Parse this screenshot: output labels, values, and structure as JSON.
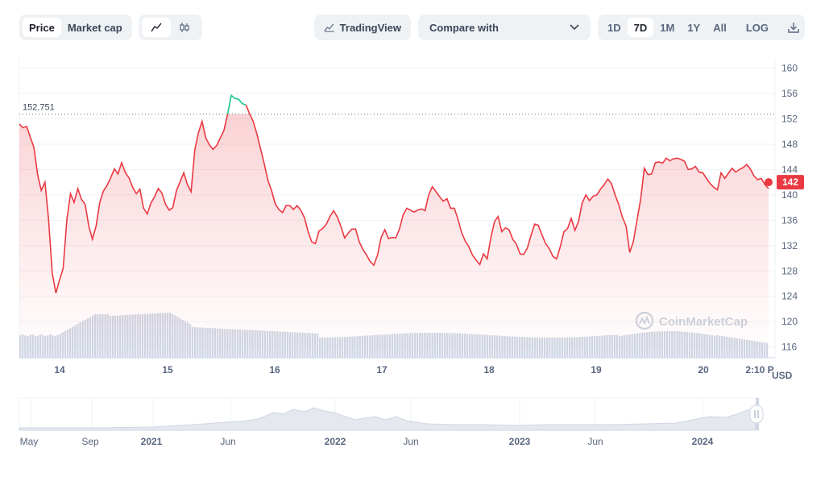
{
  "toolbar": {
    "price_tab": "Price",
    "market_cap_tab": "Market cap",
    "line_icon": "line-chart-icon",
    "candle_icon": "candlestick-icon",
    "tradingview_label": "TradingView",
    "compare_label": "Compare with",
    "ranges": [
      "1D",
      "7D",
      "1M",
      "1Y",
      "All"
    ],
    "active_range": "7D",
    "log_label": "LOG",
    "download_icon": "download-icon"
  },
  "chart_data": {
    "type": "line",
    "y_axis": {
      "ticks": [
        116,
        120,
        124,
        128,
        132,
        136,
        140,
        144,
        148,
        152,
        156,
        160
      ],
      "ylim": [
        114.3,
        161.6
      ],
      "position": "right"
    },
    "x_axis": {
      "tick_labels": [
        "14",
        "15",
        "16",
        "17",
        "18",
        "19",
        "20",
        "2:10 P"
      ]
    },
    "currency_label": "USD",
    "reference_line": {
      "value": 152.751,
      "label": "152.751"
    },
    "current_price": {
      "value": 142,
      "label": "142"
    },
    "colors": {
      "down": "#ea3943",
      "up": "#16c784",
      "reference": "#58667e",
      "volume": "#cfd6e4"
    },
    "series": [
      {
        "values": [
          151.2,
          150.6,
          150.8,
          149.1,
          147.5,
          143.2,
          140.7,
          142.0,
          136.1,
          127.7,
          124.5,
          126.6,
          128.4,
          136.1,
          140.2,
          138.8,
          141.0,
          139.3,
          138.5,
          135.1,
          133.0,
          135.1,
          138.8,
          140.6,
          141.5,
          142.7,
          144.1,
          143.3,
          145.1,
          143.5,
          142.7,
          141.2,
          140.2,
          140.9,
          137.9,
          137.0,
          138.7,
          139.7,
          141.0,
          140.3,
          138.5,
          137.6,
          138.0,
          140.7,
          142.1,
          143.5,
          141.6,
          140.5,
          147.1,
          149.8,
          151.6,
          149.0,
          147.9,
          147.2,
          147.8,
          149.0,
          150.2,
          152.8,
          155.7,
          155.2,
          155.1,
          154.4,
          154.2,
          152.8,
          151.6,
          149.6,
          147.3,
          144.9,
          142.3,
          140.7,
          138.6,
          137.7,
          137.2,
          138.3,
          138.3,
          137.7,
          138.3,
          137.6,
          136.4,
          134.2,
          132.6,
          132.3,
          134.3,
          134.7,
          135.4,
          136.6,
          137.5,
          136.5,
          135.0,
          133.2,
          134.0,
          134.6,
          134.6,
          132.6,
          131.4,
          130.5,
          129.5,
          128.9,
          130.5,
          133.3,
          134.5,
          133.1,
          133.3,
          133.2,
          134.6,
          136.8,
          137.9,
          137.6,
          137.3,
          137.6,
          137.8,
          137.5,
          140.0,
          141.3,
          140.5,
          139.7,
          139.0,
          139.4,
          137.9,
          137.9,
          136.2,
          134.1,
          132.7,
          131.8,
          130.5,
          129.7,
          129.0,
          130.7,
          129.9,
          133.2,
          135.8,
          136.6,
          134.2,
          134.8,
          134.5,
          133.0,
          132.2,
          130.7,
          130.6,
          131.6,
          133.6,
          135.4,
          135.2,
          133.7,
          132.3,
          131.5,
          130.3,
          129.9,
          131.8,
          134.2,
          134.7,
          136.3,
          134.4,
          135.8,
          138.7,
          140.0,
          139.1,
          139.8,
          140.0,
          140.9,
          141.6,
          142.5,
          141.8,
          140.0,
          138.5,
          136.5,
          135.1,
          130.9,
          132.6,
          136.0,
          139.3,
          144.2,
          143.2,
          143.3,
          145.1,
          145.2,
          145.0,
          145.8,
          145.4,
          145.7,
          145.8,
          145.6,
          145.3,
          144.0,
          144.1,
          144.5,
          143.6,
          143.5,
          142.6,
          141.8,
          141.2,
          140.8,
          143.5,
          142.6,
          143.4,
          144.2,
          143.6,
          144.0,
          144.3,
          144.8,
          144.1,
          143.0,
          142.4,
          142.6,
          141.6,
          141.0
        ],
        "up_range_index": [
          57,
          62
        ]
      }
    ],
    "volume_bars": 300,
    "watermark": "CoinMarketCap"
  },
  "navigator": {
    "labels": [
      "May",
      "Sep",
      "2021",
      "Jun",
      "2022",
      "Jun",
      "2023",
      "Jun",
      "2024"
    ],
    "handle_icon": "drag-handle-icon"
  }
}
